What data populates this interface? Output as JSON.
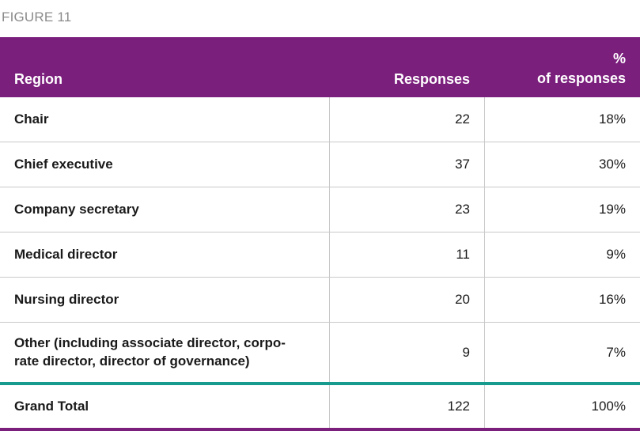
{
  "figure_label": "FIGURE 11",
  "table": {
    "headers": {
      "region": "Region",
      "responses": "Responses",
      "pct_line1": "%",
      "pct_line2": "of responses"
    },
    "rows": [
      {
        "region": "Chair",
        "responses": "22",
        "pct": "18%"
      },
      {
        "region": "Chief executive",
        "responses": "37",
        "pct": "30%"
      },
      {
        "region": "Company secretary",
        "responses": "23",
        "pct": "19%"
      },
      {
        "region": "Medical director",
        "responses": "11",
        "pct": "9%"
      },
      {
        "region": "Nursing director",
        "responses": "20",
        "pct": "16%"
      },
      {
        "region_line1": "Other (including associate director, corpo-",
        "region_line2": "rate director, director of governance)",
        "responses": "9",
        "pct": "7%"
      }
    ],
    "total": {
      "region": "Grand Total",
      "responses": "122",
      "pct": "100%"
    }
  },
  "colors": {
    "header_bg": "#7b1f7d",
    "teal_rule": "#169b8d",
    "figure_label": "#8a8a8a"
  }
}
